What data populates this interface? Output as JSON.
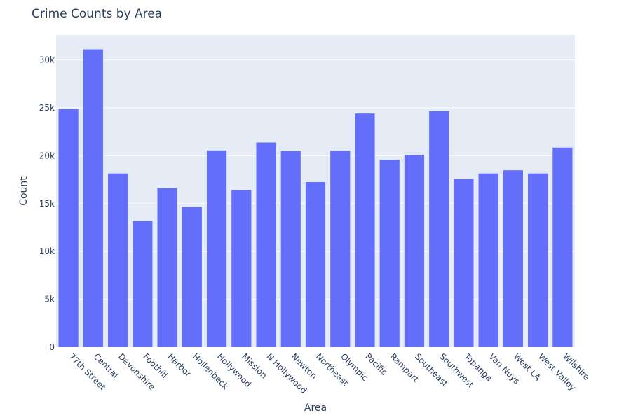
{
  "chart_data": {
    "type": "bar",
    "title": "Crime Counts by Area",
    "xlabel": "Area",
    "ylabel": "Count",
    "categories": [
      "77th Street",
      "Central",
      "Devonshire",
      "Foothill",
      "Harbor",
      "Hollenbeck",
      "Hollywood",
      "Mission",
      "N Hollywood",
      "Newton",
      "Northeast",
      "Olympic",
      "Pacific",
      "Rampart",
      "Southeast",
      "Southwest",
      "Topanga",
      "Van Nuys",
      "West LA",
      "West Valley",
      "Wilshire"
    ],
    "values": [
      24900,
      31100,
      18150,
      13200,
      16600,
      14650,
      20550,
      16400,
      21380,
      20480,
      17250,
      20520,
      24400,
      19580,
      20080,
      24650,
      17550,
      18150,
      18480,
      18150,
      20850
    ],
    "ylim": [
      0,
      32600
    ],
    "yticks": [
      0,
      5000,
      10000,
      15000,
      20000,
      25000,
      30000
    ],
    "ytick_labels": [
      "0",
      "5k",
      "10k",
      "15k",
      "20k",
      "25k",
      "30k"
    ],
    "bar_color": "#636efa",
    "plot_bg": "#e5ecf6",
    "grid_color": "#ffffff",
    "grid": true,
    "text_color": "#2a3f5f"
  }
}
